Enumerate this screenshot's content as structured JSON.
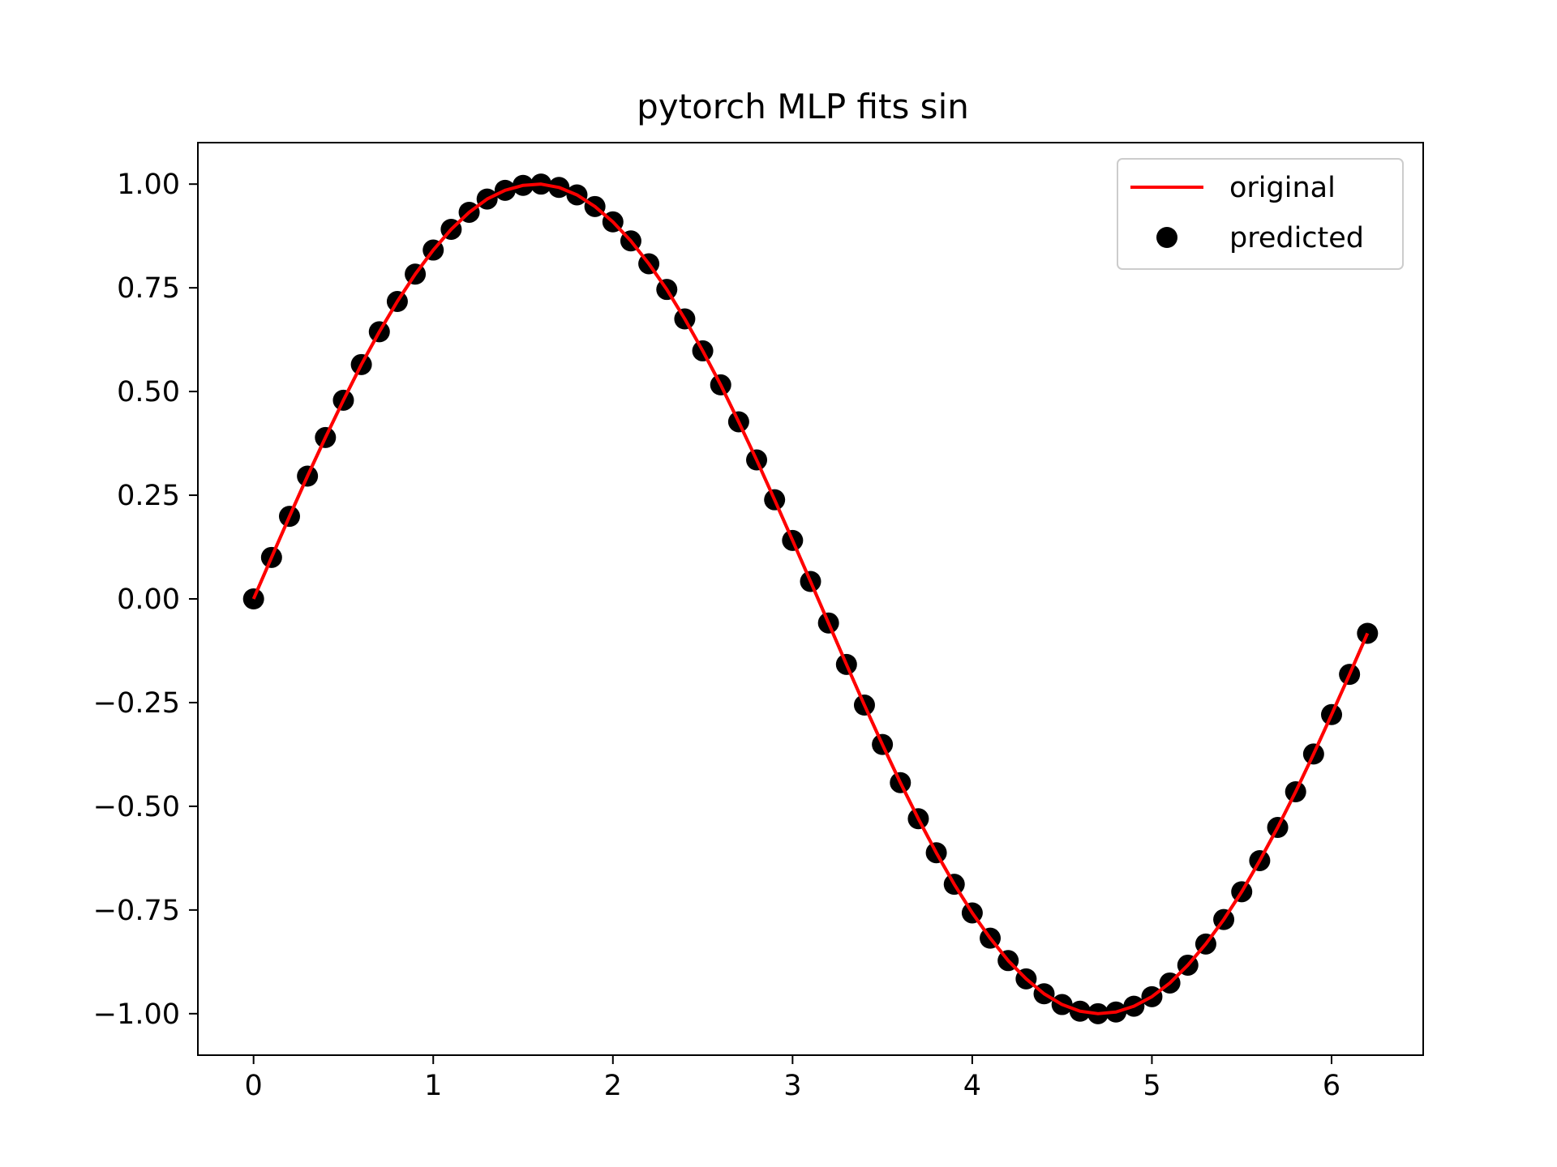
{
  "chart_data": {
    "type": "line",
    "title": "pytorch MLP fits sin",
    "xlabel": "",
    "ylabel": "",
    "xlim": [
      -0.31,
      6.51
    ],
    "ylim": [
      -1.1,
      1.1
    ],
    "grid": false,
    "legend_position": "upper-right",
    "x_ticks": [
      {
        "value": 0,
        "label": "0"
      },
      {
        "value": 1,
        "label": "1"
      },
      {
        "value": 2,
        "label": "2"
      },
      {
        "value": 3,
        "label": "3"
      },
      {
        "value": 4,
        "label": "4"
      },
      {
        "value": 5,
        "label": "5"
      },
      {
        "value": 6,
        "label": "6"
      }
    ],
    "y_ticks": [
      {
        "value": 1.0,
        "label": "1.00"
      },
      {
        "value": 0.75,
        "label": "0.75"
      },
      {
        "value": 0.5,
        "label": "0.50"
      },
      {
        "value": 0.25,
        "label": "0.25"
      },
      {
        "value": 0.0,
        "label": "0.00"
      },
      {
        "value": -0.25,
        "label": "−0.25"
      },
      {
        "value": -0.5,
        "label": "−0.50"
      },
      {
        "value": -0.75,
        "label": "−0.75"
      },
      {
        "value": -1.0,
        "label": "−1.00"
      }
    ],
    "series": [
      {
        "name": "original",
        "kind": "line",
        "color": "#ff0000",
        "x": [
          0.0,
          0.1,
          0.2,
          0.3,
          0.4,
          0.5,
          0.6,
          0.7,
          0.8,
          0.9,
          1.0,
          1.1,
          1.2,
          1.3,
          1.4,
          1.5,
          1.6,
          1.7,
          1.8,
          1.9,
          2.0,
          2.1,
          2.2,
          2.3,
          2.4,
          2.5,
          2.6,
          2.7,
          2.8,
          2.9,
          3.0,
          3.1,
          3.2,
          3.3,
          3.4,
          3.5,
          3.6,
          3.7,
          3.8,
          3.9,
          4.0,
          4.1,
          4.2,
          4.3,
          4.4,
          4.5,
          4.6,
          4.7,
          4.8,
          4.9,
          5.0,
          5.1,
          5.2,
          5.3,
          5.4,
          5.5,
          5.6,
          5.7,
          5.8,
          5.9,
          6.0,
          6.1,
          6.2
        ],
        "y": [
          0.0,
          0.1,
          0.199,
          0.296,
          0.389,
          0.479,
          0.565,
          0.644,
          0.717,
          0.783,
          0.841,
          0.891,
          0.932,
          0.964,
          0.985,
          0.997,
          1.0,
          0.992,
          0.974,
          0.946,
          0.909,
          0.863,
          0.808,
          0.746,
          0.675,
          0.598,
          0.516,
          0.427,
          0.335,
          0.239,
          0.141,
          0.042,
          -0.058,
          -0.158,
          -0.256,
          -0.351,
          -0.443,
          -0.53,
          -0.612,
          -0.688,
          -0.757,
          -0.818,
          -0.872,
          -0.916,
          -0.952,
          -0.978,
          -0.994,
          -1.0,
          -0.996,
          -0.982,
          -0.959,
          -0.926,
          -0.883,
          -0.832,
          -0.773,
          -0.706,
          -0.631,
          -0.551,
          -0.465,
          -0.374,
          -0.279,
          -0.182,
          -0.083
        ]
      },
      {
        "name": "predicted",
        "kind": "scatter",
        "color": "#000000",
        "x": [
          0.0,
          0.1,
          0.2,
          0.3,
          0.4,
          0.5,
          0.6,
          0.7,
          0.8,
          0.9,
          1.0,
          1.1,
          1.2,
          1.3,
          1.4,
          1.5,
          1.6,
          1.7,
          1.8,
          1.9,
          2.0,
          2.1,
          2.2,
          2.3,
          2.4,
          2.5,
          2.6,
          2.7,
          2.8,
          2.9,
          3.0,
          3.1,
          3.2,
          3.3,
          3.4,
          3.5,
          3.6,
          3.7,
          3.8,
          3.9,
          4.0,
          4.1,
          4.2,
          4.3,
          4.4,
          4.5,
          4.6,
          4.7,
          4.8,
          4.9,
          5.0,
          5.1,
          5.2,
          5.3,
          5.4,
          5.5,
          5.6,
          5.7,
          5.8,
          5.9,
          6.0,
          6.1,
          6.2
        ],
        "y": [
          0.0,
          0.1,
          0.199,
          0.296,
          0.389,
          0.479,
          0.565,
          0.644,
          0.717,
          0.783,
          0.841,
          0.891,
          0.932,
          0.964,
          0.985,
          0.997,
          1.0,
          0.992,
          0.974,
          0.946,
          0.909,
          0.863,
          0.808,
          0.746,
          0.675,
          0.598,
          0.516,
          0.427,
          0.335,
          0.239,
          0.141,
          0.042,
          -0.058,
          -0.158,
          -0.256,
          -0.351,
          -0.443,
          -0.53,
          -0.612,
          -0.688,
          -0.757,
          -0.818,
          -0.872,
          -0.916,
          -0.952,
          -0.978,
          -0.994,
          -1.0,
          -0.996,
          -0.982,
          -0.959,
          -0.926,
          -0.883,
          -0.832,
          -0.773,
          -0.706,
          -0.631,
          -0.551,
          -0.465,
          -0.374,
          -0.279,
          -0.182,
          -0.083
        ]
      }
    ]
  }
}
